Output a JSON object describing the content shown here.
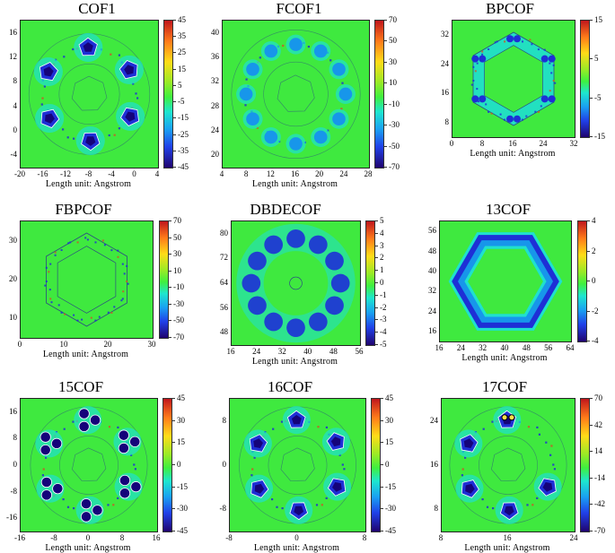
{
  "xlabel": "Length unit: Angstrom",
  "colors": {
    "background": "#3fe93f",
    "ring": "#1fe0cf",
    "inner_ring": "#1796ea",
    "core": "#1e2fd6",
    "dark_core": "#15037a",
    "atom": "#c85a28",
    "contour": "#2a3a8a"
  },
  "panels": [
    {
      "title": "COF1",
      "xticks": [
        "-20",
        "-16",
        "-12",
        "-8",
        "-4",
        "0",
        "4"
      ],
      "yticks": [
        "16",
        "12",
        "8",
        "4",
        "0",
        "-4"
      ],
      "cbar": [
        "45",
        "35",
        "25",
        "15",
        "5",
        "-5",
        "-15",
        "-25",
        "-35",
        "-45"
      ],
      "motif": "ring-of-pentagons"
    },
    {
      "title": "FCOF1",
      "xticks": [
        "4",
        "8",
        "12",
        "16",
        "20",
        "24",
        "28"
      ],
      "yticks": [
        "40",
        "36",
        "32",
        "28",
        "24",
        "20"
      ],
      "cbar": [
        "70",
        "50",
        "30",
        "10",
        "-10",
        "-30",
        "-50",
        "-70"
      ],
      "motif": "ring-of-hubs"
    },
    {
      "title": "BPCOF",
      "xticks": [
        "0",
        "8",
        "16",
        "24",
        "32"
      ],
      "yticks": [
        "32",
        "24",
        "16",
        "8"
      ],
      "cbar": [
        "15",
        "5",
        "-5",
        "-15"
      ],
      "motif": "hexagon-frame"
    },
    {
      "title": "FBPCOF",
      "xticks": [
        "0",
        "10",
        "20",
        "30"
      ],
      "yticks": [
        "30",
        "20",
        "10"
      ],
      "cbar": [
        "70",
        "50",
        "30",
        "10",
        "-10",
        "-30",
        "-50",
        "-70"
      ],
      "motif": "hexagon-atoms"
    },
    {
      "title": "DBDECOF",
      "xticks": [
        "16",
        "24",
        "32",
        "40",
        "48",
        "56"
      ],
      "yticks": [
        "80",
        "72",
        "64",
        "56",
        "48"
      ],
      "cbar": [
        "5",
        "4",
        "3",
        "2",
        "1",
        "0",
        "-1",
        "-2",
        "-3",
        "-4",
        "-5"
      ],
      "motif": "blob-hexagon"
    },
    {
      "title": "13COF",
      "xticks": [
        "16",
        "24",
        "32",
        "40",
        "48",
        "56",
        "64"
      ],
      "yticks": [
        "56",
        "48",
        "40",
        "32",
        "24",
        "16"
      ],
      "cbar": [
        "4",
        "2",
        "0",
        "-2",
        "-4"
      ],
      "motif": "thick-hexagon"
    },
    {
      "title": "15COF",
      "xticks": [
        "-16",
        "-8",
        "0",
        "8",
        "16"
      ],
      "yticks": [
        "16",
        "8",
        "0",
        "-8",
        "-16"
      ],
      "cbar": [
        "45",
        "30",
        "15",
        "0",
        "-15",
        "-30",
        "-45"
      ],
      "motif": "ring-of-clusters"
    },
    {
      "title": "16COF",
      "xticks": [
        "-8",
        "0",
        "8"
      ],
      "yticks": [
        "8",
        "0",
        "-8"
      ],
      "cbar": [
        "45",
        "30",
        "15",
        "0",
        "-15",
        "-30",
        "-45"
      ],
      "motif": "ring-of-pentagons-2"
    },
    {
      "title": "17COF",
      "xticks": [
        "8",
        "16",
        "24"
      ],
      "yticks": [
        "24",
        "16",
        "8"
      ],
      "cbar": [
        "70",
        "42",
        "14",
        "-14",
        "-42",
        "-70"
      ],
      "motif": "open-ring"
    }
  ]
}
